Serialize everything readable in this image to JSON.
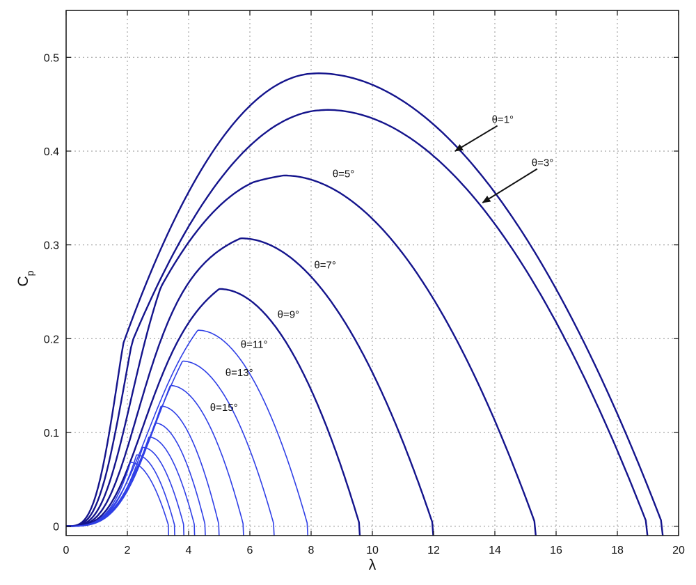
{
  "chart_data": {
    "type": "line",
    "title": "",
    "xlabel": "λ",
    "ylabel": "C",
    "ylabel_subscript": "p",
    "xlim": [
      0,
      20
    ],
    "ylim": [
      -0.01,
      0.55
    ],
    "xticks": [
      0,
      2,
      4,
      6,
      8,
      10,
      12,
      14,
      16,
      18,
      20
    ],
    "yticks": [
      0,
      0.1,
      0.2,
      0.3,
      0.4,
      0.5
    ],
    "grid": true,
    "line_color_strong": "#14148c",
    "line_color_light": "#2f3fe6",
    "series": [
      {
        "peak_x": 8.2,
        "peak_y": 0.483,
        "zero_x": 19.5
      },
      {
        "peak_x": 8.5,
        "peak_y": 0.444,
        "zero_x": 19.0
      },
      {
        "peak_x": 7.1,
        "peak_y": 0.374,
        "zero_x": 15.35
      },
      {
        "peak_x": 5.7,
        "peak_y": 0.307,
        "zero_x": 12.0
      },
      {
        "peak_x": 5.0,
        "peak_y": 0.253,
        "zero_x": 9.6
      },
      {
        "peak_x": 4.3,
        "peak_y": 0.209,
        "zero_x": 7.9
      },
      {
        "peak_x": 3.8,
        "peak_y": 0.176,
        "zero_x": 6.8
      },
      {
        "peak_x": 3.4,
        "peak_y": 0.15,
        "zero_x": 5.8
      },
      {
        "peak_x": 3.1,
        "peak_y": 0.128,
        "zero_x": 5.0
      },
      {
        "peak_x": 2.9,
        "peak_y": 0.11,
        "zero_x": 4.55
      },
      {
        "peak_x": 2.7,
        "peak_y": 0.095,
        "zero_x": 4.2
      },
      {
        "peak_x": 2.5,
        "peak_y": 0.084,
        "zero_x": 3.85
      },
      {
        "peak_x": 2.3,
        "peak_y": 0.076,
        "zero_x": 3.55
      },
      {
        "peak_x": 2.1,
        "peak_y": 0.068,
        "zero_x": 3.35
      }
    ],
    "annotations": [
      {
        "label": "θ=1°",
        "x": 13.9,
        "y": 0.43,
        "arrow_to": [
          12.7,
          0.4
        ]
      },
      {
        "label": "θ=3°",
        "x": 15.2,
        "y": 0.384,
        "arrow_to": [
          13.6,
          0.345
        ]
      },
      {
        "label": "θ=5°",
        "x": 8.7,
        "y": 0.372
      },
      {
        "label": "θ=7°",
        "x": 8.1,
        "y": 0.275
      },
      {
        "label": "θ=9°",
        "x": 6.9,
        "y": 0.222
      },
      {
        "label": "θ=11°",
        "x": 5.7,
        "y": 0.19
      },
      {
        "label": "θ=13°",
        "x": 5.2,
        "y": 0.16
      },
      {
        "label": "θ=15°",
        "x": 4.7,
        "y": 0.123
      }
    ]
  }
}
